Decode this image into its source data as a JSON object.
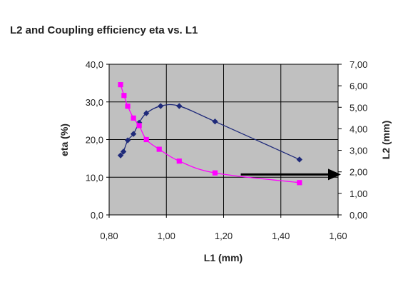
{
  "chart_data": {
    "type": "scatter",
    "title": "L2 and Coupling efficiency eta vs. L1",
    "xlabel": "L1 (mm)",
    "ylabel": "eta (%)",
    "y2label": "L2 (mm)",
    "xlim": [
      0.8,
      1.6
    ],
    "ylim": [
      0,
      40
    ],
    "y2lim": [
      0,
      7
    ],
    "x_ticks": [
      "0,80",
      "1,00",
      "1,20",
      "1,40",
      "1,60"
    ],
    "y_ticks": [
      "0,0",
      "10,0",
      "20,0",
      "30,0",
      "40,0"
    ],
    "y2_ticks": [
      "0,00",
      "1,00",
      "2,00",
      "3,00",
      "4,00",
      "5,00",
      "6,00",
      "7,00"
    ],
    "grid": true,
    "background": "#c0c0c0",
    "series": [
      {
        "axis": "left",
        "color": "#1f2a7a",
        "marker": "diamond",
        "x": [
          0.84,
          0.85,
          0.865,
          0.885,
          0.905,
          0.93,
          0.98,
          1.045,
          1.17,
          1.465
        ],
        "y": [
          15.8,
          16.8,
          19.8,
          21.5,
          24.5,
          27.0,
          28.9,
          28.9,
          24.8,
          14.7
        ]
      },
      {
        "axis": "right",
        "color": "#ff00ff",
        "marker": "square",
        "x": [
          0.84,
          0.852,
          0.865,
          0.885,
          0.905,
          0.93,
          0.975,
          1.045,
          1.17,
          1.465
        ],
        "y": [
          6.05,
          5.55,
          5.05,
          4.5,
          4.15,
          3.5,
          3.05,
          2.5,
          1.95,
          1.5
        ]
      }
    ],
    "annotation": {
      "type": "arrow",
      "direction": "right",
      "from": [
        1.26,
        1.88
      ],
      "to": [
        1.6,
        1.88
      ]
    }
  }
}
